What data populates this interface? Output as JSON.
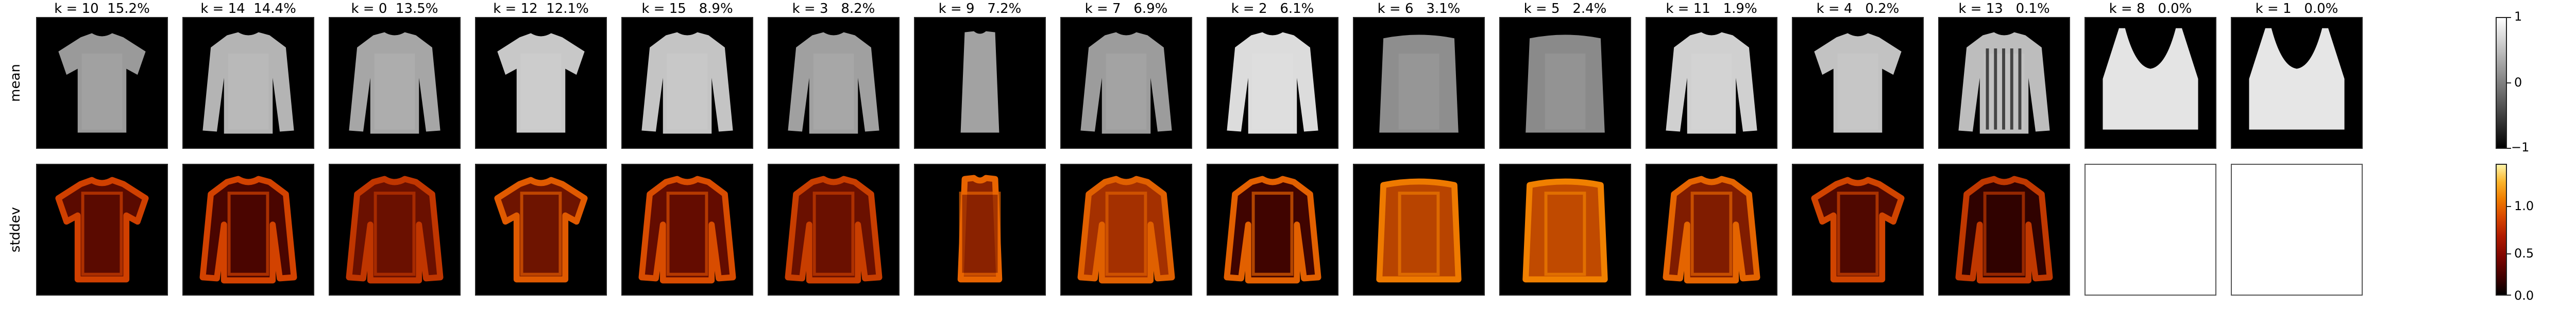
{
  "rows": {
    "mean_label": "mean",
    "stddev_label": "stddev"
  },
  "columns": [
    {
      "title": "k = 10  15.2%",
      "kind": "tshirt"
    },
    {
      "title": "k = 14  14.4%",
      "kind": "longsleeve"
    },
    {
      "title": "k = 0  13.5%",
      "kind": "longsleeve"
    },
    {
      "title": "k = 12  12.1%",
      "kind": "tshirt"
    },
    {
      "title": "k = 15   8.9%",
      "kind": "longsleeve"
    },
    {
      "title": "k = 3   8.2%",
      "kind": "longsleeve"
    },
    {
      "title": "k = 9   7.2%",
      "kind": "dress"
    },
    {
      "title": "k = 7   6.9%",
      "kind": "longsleeve"
    },
    {
      "title": "k = 2   6.1%",
      "kind": "longsleeve"
    },
    {
      "title": "k = 6   3.1%",
      "kind": "bag"
    },
    {
      "title": "k = 5   2.4%",
      "kind": "bag"
    },
    {
      "title": "k = 11   1.9%",
      "kind": "longsleeve"
    },
    {
      "title": "k = 4   0.2%",
      "kind": "tshirt"
    },
    {
      "title": "k = 13   0.1%",
      "kind": "longsleeve"
    },
    {
      "title": "k = 8   0.0%",
      "kind": "top"
    },
    {
      "title": "k = 1   0.0%",
      "kind": "top"
    }
  ],
  "chart_data": [
    {
      "type": "heatmap",
      "row": "mean",
      "categories": [
        "k = 10",
        "k = 14",
        "k = 0",
        "k = 12",
        "k = 15",
        "k = 3",
        "k = 9",
        "k = 7",
        "k = 2",
        "k = 6",
        "k = 5",
        "k = 11",
        "k = 4",
        "k = 13",
        "k = 8",
        "k = 1"
      ],
      "weights_percent": [
        15.2,
        14.4,
        13.5,
        12.1,
        8.9,
        8.2,
        7.2,
        6.9,
        6.1,
        3.1,
        2.4,
        1.9,
        0.2,
        0.1,
        0.0,
        0.0
      ],
      "colorbar": {
        "colormap": "gray",
        "range": [
          -1,
          1
        ],
        "ticks": [
          "1",
          "0",
          "−1"
        ]
      }
    },
    {
      "type": "heatmap",
      "row": "stddev",
      "categories": [
        "k = 10",
        "k = 14",
        "k = 0",
        "k = 12",
        "k = 15",
        "k = 3",
        "k = 9",
        "k = 7",
        "k = 2",
        "k = 6",
        "k = 5",
        "k = 11",
        "k = 4",
        "k = 13",
        "k = 8",
        "k = 1"
      ],
      "empty_panels": [
        "k = 8",
        "k = 1"
      ],
      "colorbar": {
        "colormap": "hot",
        "range": [
          0,
          1.25
        ],
        "ticks": [
          "1.0",
          "0.5",
          "0.0"
        ]
      }
    }
  ],
  "colors": {
    "gray_cbar_top": "#ffffff",
    "gray_cbar_bottom": "#000000",
    "hot_high": "#fff4a8",
    "hot_low": "#000000"
  }
}
